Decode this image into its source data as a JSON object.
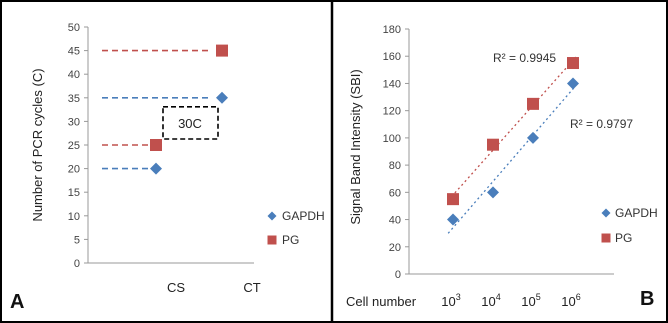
{
  "colors": {
    "gapdh": "#4a7ebb",
    "pg": "#c0504d",
    "box": "#000000"
  },
  "chart_data": [
    {
      "panel": "A",
      "type": "scatter",
      "ylabel": "Number of PCR cycles (C)",
      "ylim": [
        0,
        50
      ],
      "yticks": [
        0,
        5,
        10,
        15,
        20,
        25,
        30,
        35,
        40,
        45,
        50
      ],
      "categories": [
        "CS",
        "CT"
      ],
      "series": [
        {
          "name": "GAPDH",
          "marker": "diamond",
          "color": "#4a7ebb",
          "values": [
            20,
            35
          ]
        },
        {
          "name": "PG",
          "marker": "square",
          "color": "#c0504d",
          "values": [
            25,
            45
          ]
        }
      ],
      "annotation": "30C",
      "legend_position": "bottom-right",
      "grid": false
    },
    {
      "panel": "B",
      "type": "scatter",
      "ylabel": "Signal Band  Intensity (SBI)",
      "xlabel_prefix": "Cell number",
      "x_tick_base": "10",
      "x_tick_exponents": [
        "3",
        "4",
        "5",
        "6"
      ],
      "ylim": [
        0,
        180
      ],
      "yticks": [
        0,
        20,
        40,
        60,
        80,
        100,
        120,
        140,
        160,
        180
      ],
      "series": [
        {
          "name": "GAPDH",
          "marker": "diamond",
          "color": "#4a7ebb",
          "values": [
            40,
            60,
            100,
            140
          ],
          "r2": "R² = 0.9797"
        },
        {
          "name": "PG",
          "marker": "square",
          "color": "#c0504d",
          "values": [
            55,
            95,
            125,
            155
          ],
          "r2": "R² = 0.9945"
        }
      ],
      "trendline": "linear, dotted",
      "legend_position": "bottom-right",
      "grid": false
    }
  ]
}
